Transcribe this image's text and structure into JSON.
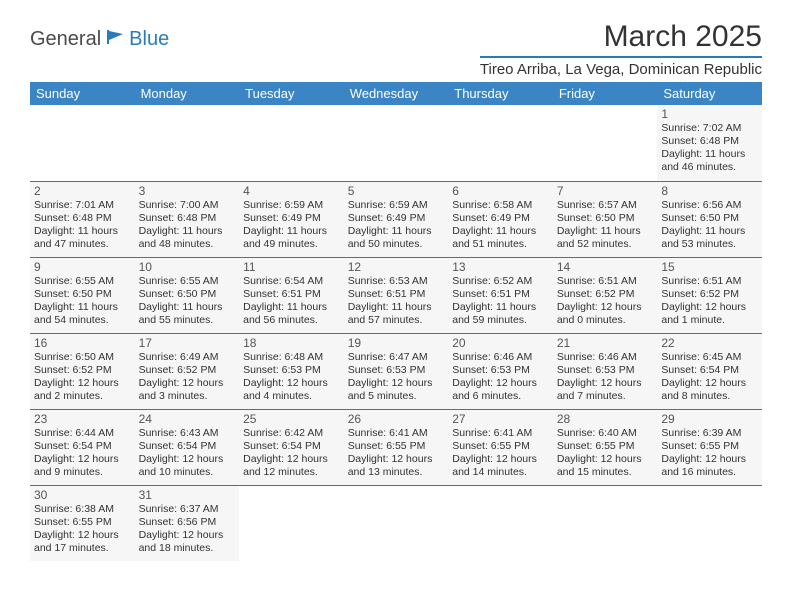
{
  "logo": {
    "general": "General",
    "blue": "Blue"
  },
  "title": "March 2025",
  "location": "Tireo Arriba, La Vega, Dominican Republic",
  "colors": {
    "header_bg": "#3b85c4",
    "accent": "#2b7bba",
    "text": "#333333",
    "cell_bg": "#f6f6f6",
    "page_bg": "#ffffff"
  },
  "weekdays": [
    "Sunday",
    "Monday",
    "Tuesday",
    "Wednesday",
    "Thursday",
    "Friday",
    "Saturday"
  ],
  "first_weekday_index": 6,
  "days": {
    "1": {
      "sunrise": "7:02 AM",
      "sunset": "6:48 PM",
      "daylight": "11 hours and 46 minutes."
    },
    "2": {
      "sunrise": "7:01 AM",
      "sunset": "6:48 PM",
      "daylight": "11 hours and 47 minutes."
    },
    "3": {
      "sunrise": "7:00 AM",
      "sunset": "6:48 PM",
      "daylight": "11 hours and 48 minutes."
    },
    "4": {
      "sunrise": "6:59 AM",
      "sunset": "6:49 PM",
      "daylight": "11 hours and 49 minutes."
    },
    "5": {
      "sunrise": "6:59 AM",
      "sunset": "6:49 PM",
      "daylight": "11 hours and 50 minutes."
    },
    "6": {
      "sunrise": "6:58 AM",
      "sunset": "6:49 PM",
      "daylight": "11 hours and 51 minutes."
    },
    "7": {
      "sunrise": "6:57 AM",
      "sunset": "6:50 PM",
      "daylight": "11 hours and 52 minutes."
    },
    "8": {
      "sunrise": "6:56 AM",
      "sunset": "6:50 PM",
      "daylight": "11 hours and 53 minutes."
    },
    "9": {
      "sunrise": "6:55 AM",
      "sunset": "6:50 PM",
      "daylight": "11 hours and 54 minutes."
    },
    "10": {
      "sunrise": "6:55 AM",
      "sunset": "6:50 PM",
      "daylight": "11 hours and 55 minutes."
    },
    "11": {
      "sunrise": "6:54 AM",
      "sunset": "6:51 PM",
      "daylight": "11 hours and 56 minutes."
    },
    "12": {
      "sunrise": "6:53 AM",
      "sunset": "6:51 PM",
      "daylight": "11 hours and 57 minutes."
    },
    "13": {
      "sunrise": "6:52 AM",
      "sunset": "6:51 PM",
      "daylight": "11 hours and 59 minutes."
    },
    "14": {
      "sunrise": "6:51 AM",
      "sunset": "6:52 PM",
      "daylight": "12 hours and 0 minutes."
    },
    "15": {
      "sunrise": "6:51 AM",
      "sunset": "6:52 PM",
      "daylight": "12 hours and 1 minute."
    },
    "16": {
      "sunrise": "6:50 AM",
      "sunset": "6:52 PM",
      "daylight": "12 hours and 2 minutes."
    },
    "17": {
      "sunrise": "6:49 AM",
      "sunset": "6:52 PM",
      "daylight": "12 hours and 3 minutes."
    },
    "18": {
      "sunrise": "6:48 AM",
      "sunset": "6:53 PM",
      "daylight": "12 hours and 4 minutes."
    },
    "19": {
      "sunrise": "6:47 AM",
      "sunset": "6:53 PM",
      "daylight": "12 hours and 5 minutes."
    },
    "20": {
      "sunrise": "6:46 AM",
      "sunset": "6:53 PM",
      "daylight": "12 hours and 6 minutes."
    },
    "21": {
      "sunrise": "6:46 AM",
      "sunset": "6:53 PM",
      "daylight": "12 hours and 7 minutes."
    },
    "22": {
      "sunrise": "6:45 AM",
      "sunset": "6:54 PM",
      "daylight": "12 hours and 8 minutes."
    },
    "23": {
      "sunrise": "6:44 AM",
      "sunset": "6:54 PM",
      "daylight": "12 hours and 9 minutes."
    },
    "24": {
      "sunrise": "6:43 AM",
      "sunset": "6:54 PM",
      "daylight": "12 hours and 10 minutes."
    },
    "25": {
      "sunrise": "6:42 AM",
      "sunset": "6:54 PM",
      "daylight": "12 hours and 12 minutes."
    },
    "26": {
      "sunrise": "6:41 AM",
      "sunset": "6:55 PM",
      "daylight": "12 hours and 13 minutes."
    },
    "27": {
      "sunrise": "6:41 AM",
      "sunset": "6:55 PM",
      "daylight": "12 hours and 14 minutes."
    },
    "28": {
      "sunrise": "6:40 AM",
      "sunset": "6:55 PM",
      "daylight": "12 hours and 15 minutes."
    },
    "29": {
      "sunrise": "6:39 AM",
      "sunset": "6:55 PM",
      "daylight": "12 hours and 16 minutes."
    },
    "30": {
      "sunrise": "6:38 AM",
      "sunset": "6:55 PM",
      "daylight": "12 hours and 17 minutes."
    },
    "31": {
      "sunrise": "6:37 AM",
      "sunset": "6:56 PM",
      "daylight": "12 hours and 18 minutes."
    }
  },
  "labels": {
    "sunrise": "Sunrise:",
    "sunset": "Sunset:",
    "daylight": "Daylight:"
  }
}
